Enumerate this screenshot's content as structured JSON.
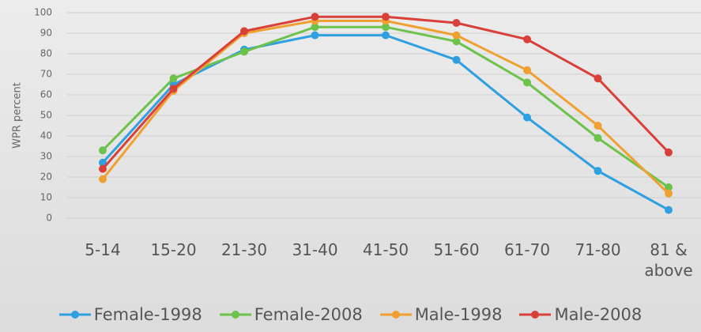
{
  "chart_data": {
    "type": "line",
    "y_label": "WPR percent",
    "categories": [
      "5-14",
      "15-20",
      "21-30",
      "31-40",
      "41-50",
      "51-60",
      "61-70",
      "71-80",
      "81 & above"
    ],
    "series": [
      {
        "name": "Female-1998",
        "color": "#2e9fe0",
        "values": [
          27,
          65,
          82,
          89,
          89,
          77,
          49,
          23,
          4
        ]
      },
      {
        "name": "Female-2008",
        "color": "#6cc24a",
        "values": [
          33,
          68,
          81,
          93,
          93,
          86,
          66,
          39,
          15
        ]
      },
      {
        "name": "Male-1998",
        "color": "#f0a030",
        "values": [
          19,
          62,
          90,
          96,
          96,
          89,
          72,
          45,
          12
        ]
      },
      {
        "name": "Male-2008",
        "color": "#d9403a",
        "values": [
          24,
          63,
          91,
          98,
          98,
          95,
          87,
          68,
          32
        ]
      }
    ],
    "ylim": [
      0,
      100
    ],
    "yticks": [
      0,
      10,
      20,
      30,
      40,
      50,
      60,
      70,
      80,
      90,
      100
    ],
    "grid": true,
    "legend": "bottom"
  }
}
